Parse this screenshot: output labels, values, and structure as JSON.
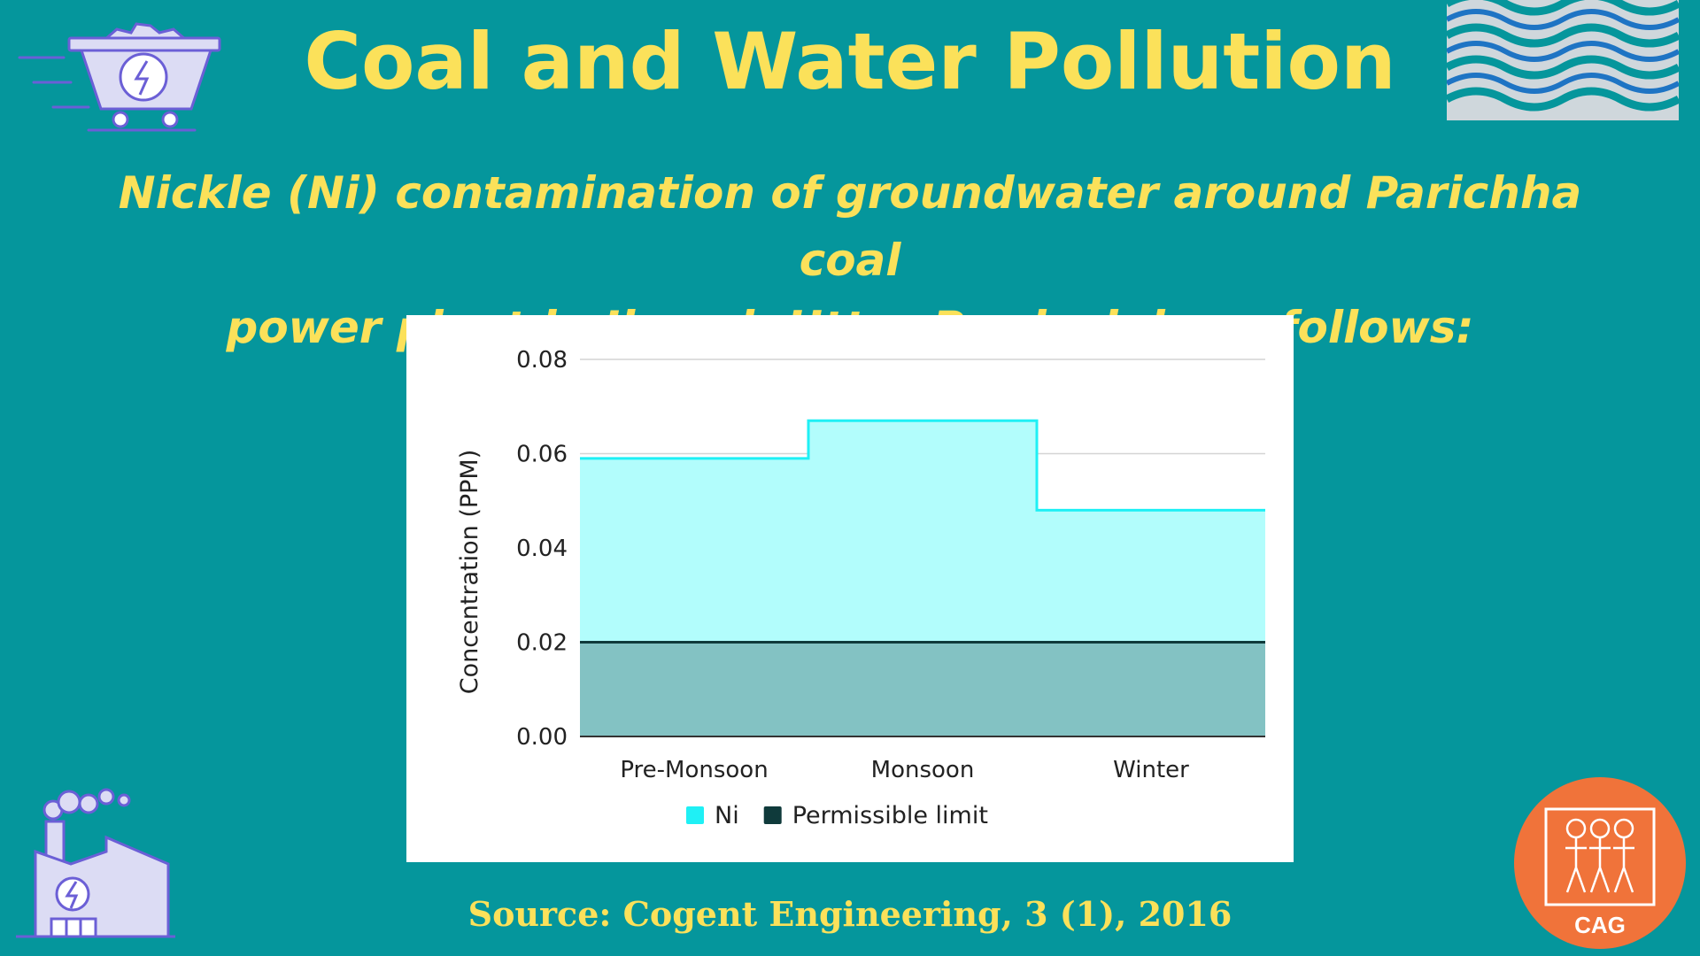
{
  "header": {
    "title": "Coal and Water Pollution",
    "subtitle_line1": "Nickle (Ni) contamination of groundwater around Parichha coal",
    "subtitle_line2": "power plant in Jhansi, Uttar Pradesh is as follows:"
  },
  "footer": {
    "source": "Source: Cogent Engineering, 3 (1), 2016"
  },
  "logo": {
    "text": "CAG"
  },
  "icons": {
    "cart": "coal-cart-icon",
    "waves": "water-waves-icon",
    "factory": "power-plant-icon"
  },
  "chart_data": {
    "type": "area",
    "categories": [
      "Pre-Monsoon",
      "Monsoon",
      "Winter"
    ],
    "ylabel": "Concentration (PPM)",
    "ylim": [
      0,
      0.08
    ],
    "yticks": [
      "0.00",
      "0.02",
      "0.04",
      "0.06",
      "0.08"
    ],
    "grid": true,
    "legend_placement": "bottom",
    "step": true,
    "series": [
      {
        "name": "Ni",
        "values": [
          0.059,
          0.067,
          0.048
        ],
        "color": "#1ff0f5",
        "fill": "#b2fdfc"
      },
      {
        "name": "Permissible limit",
        "values": [
          0.02,
          0.02,
          0.02
        ],
        "color": "#0f3a3b",
        "fill": "#83c2c3"
      }
    ]
  }
}
